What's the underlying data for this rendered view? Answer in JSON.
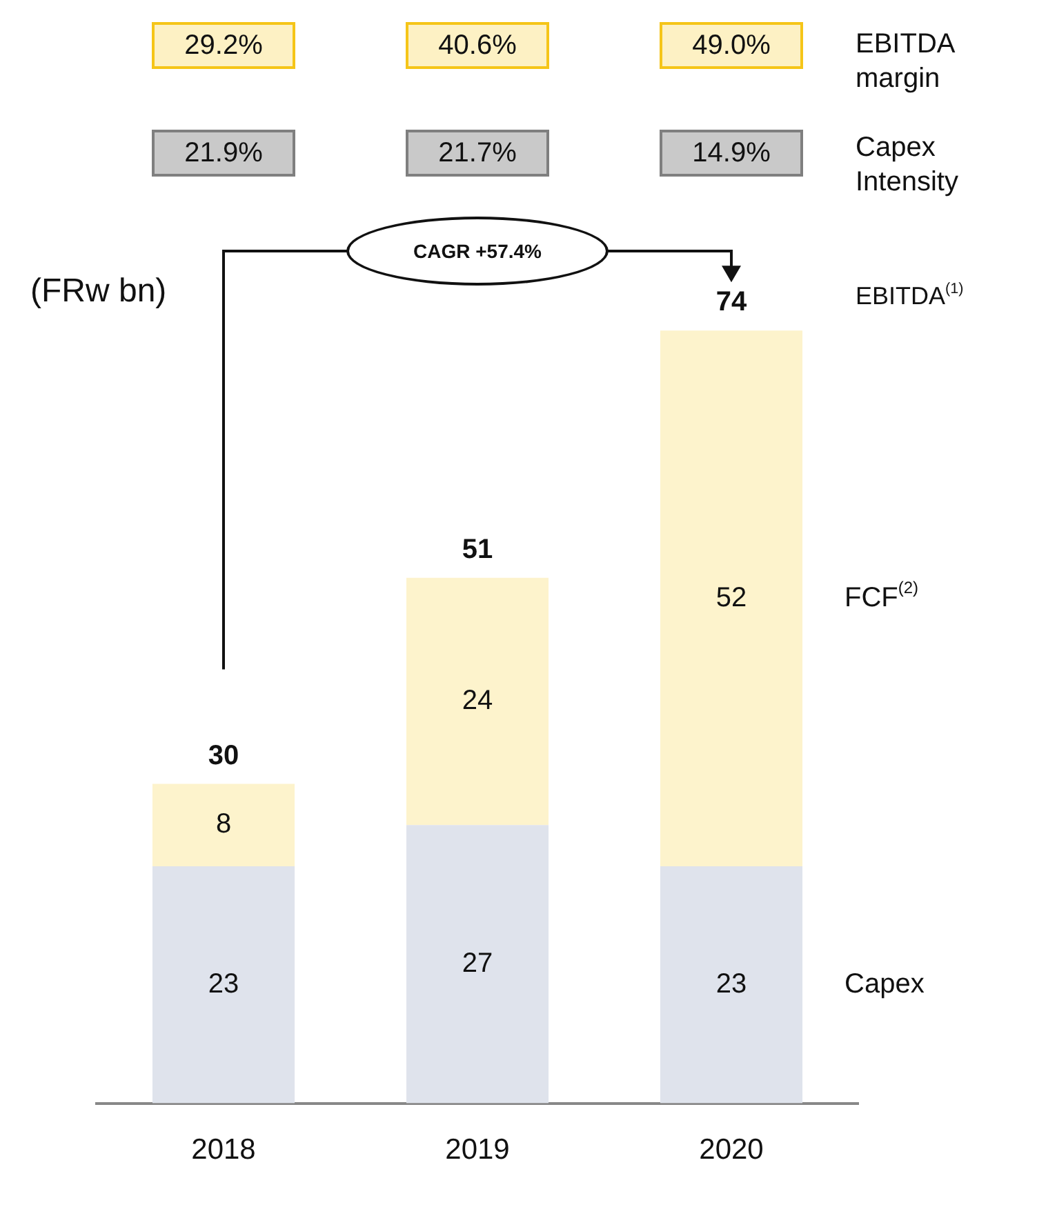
{
  "chart_data": {
    "type": "bar",
    "stacked": true,
    "categories": [
      "2018",
      "2019",
      "2020"
    ],
    "series": [
      {
        "name": "Capex",
        "color": "#dfe3ec",
        "values": [
          23,
          27,
          23
        ]
      },
      {
        "name": "FCF$^{(2)}$",
        "color": "#fdf3cc",
        "values": [
          8,
          24,
          52
        ]
      }
    ],
    "data_labels": true,
    "totals": [
      "30",
      "51",
      "74"
    ],
    "annotations": [
      "(FRw bn)",
      "CAGR +57.4%",
      "EBITDA$^{(1)}$",
      "29.2%",
      "40.6%",
      "49.0%",
      "EBITDA margin",
      "21.9%",
      "21.7%",
      "14.9%",
      "Capex Intensity"
    ]
  }
}
